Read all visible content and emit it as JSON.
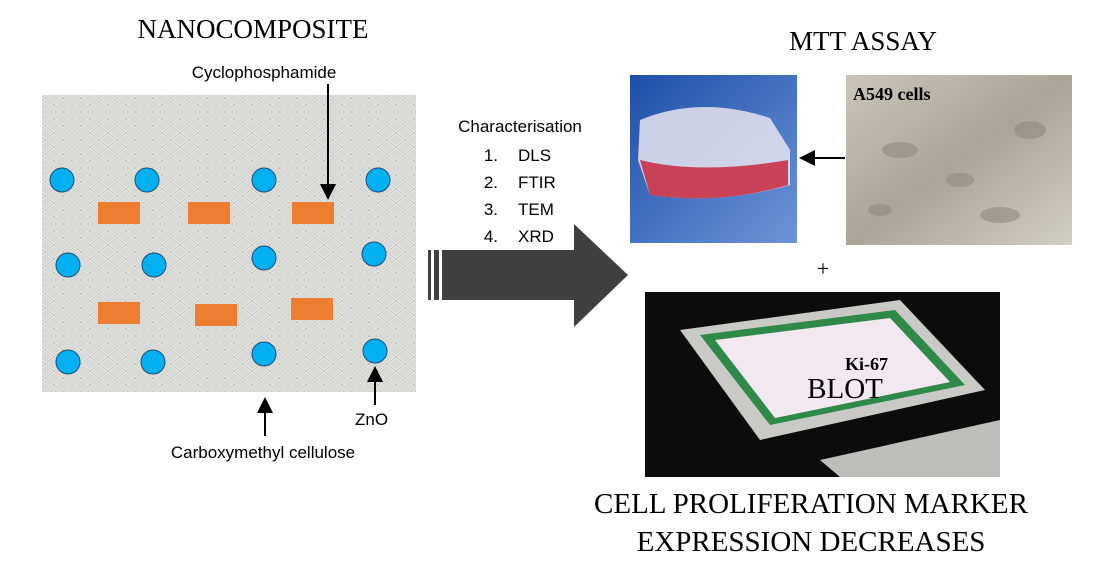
{
  "nanocomposite": {
    "title": "NANOCOMPOSITE",
    "labels": {
      "drug": "Cyclophosphamide",
      "polymer": "Carboxymethyl cellulose",
      "particle": "ZnO"
    }
  },
  "characterisation": {
    "title": "Characterisation",
    "items": [
      {
        "number": "1.",
        "label": "DLS"
      },
      {
        "number": "2.",
        "label": "FTIR"
      },
      {
        "number": "3.",
        "label": "TEM"
      },
      {
        "number": "4.",
        "label": "XRD"
      }
    ]
  },
  "mtt": {
    "title": "MTT ASSAY",
    "cells": "A549 cells",
    "plus": "+"
  },
  "blot": {
    "marker": "Ki-67",
    "label": "BLOT"
  },
  "conclusion": {
    "line1": "CELL PROLIFERATION MARKER",
    "line2": "EXPRESSION DECREASES"
  }
}
